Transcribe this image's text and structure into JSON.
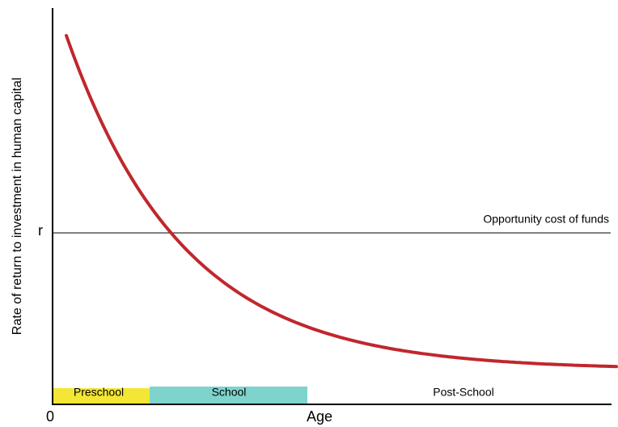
{
  "y_axis_label": "Rate of return to investment in human capital",
  "x_axis_label": "Age",
  "origin_label": "0",
  "r_label": "r",
  "line_label": "Opportunity cost of funds",
  "stages": [
    "Preschool",
    "School",
    "Post-School"
  ]
}
